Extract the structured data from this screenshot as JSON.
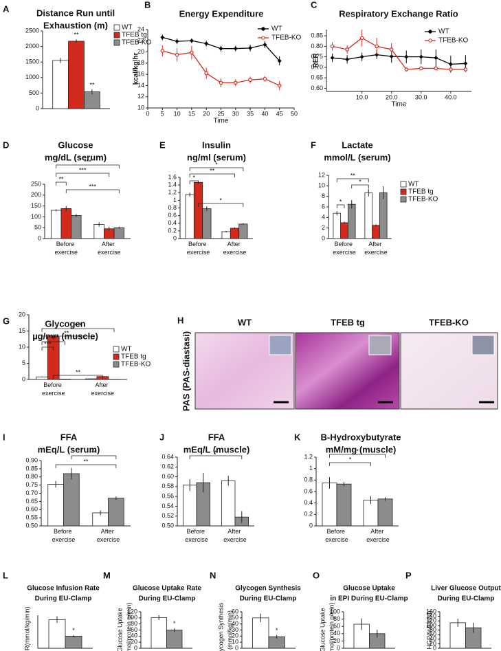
{
  "chart_data": [
    {
      "panel": "A",
      "type": "bar",
      "title": [
        "Distance Run until",
        "Exhaustion (m)"
      ],
      "series": [
        {
          "name": "WT",
          "color": "#ffffff",
          "values": [
            1550
          ],
          "errors": [
            80
          ]
        },
        {
          "name": "TFEB tg",
          "color": "#d42a1e",
          "values": [
            2170
          ],
          "errors": [
            60
          ]
        },
        {
          "name": "TFEB-KO",
          "color": "#8c8c8c",
          "values": [
            540
          ],
          "errors": [
            80
          ]
        }
      ],
      "ylim": [
        0,
        2500
      ],
      "yticks": [
        0,
        500,
        1000,
        1500,
        2000,
        2500
      ],
      "annotations": [
        "**",
        "**"
      ],
      "legend": "right"
    },
    {
      "panel": "B",
      "type": "line",
      "title": [
        "Energy Expenditure"
      ],
      "x": [
        5,
        10,
        15,
        20,
        25,
        30,
        35,
        40,
        45
      ],
      "series": [
        {
          "name": "WT",
          "color": "#000000",
          "values": [
            22.6,
            21.9,
            22.0,
            21.5,
            20.6,
            20.6,
            20.7,
            21.3,
            18.4
          ],
          "errors": [
            0.5,
            0.5,
            0.4,
            0.5,
            0.5,
            0.5,
            0.6,
            0.6,
            0.8
          ]
        },
        {
          "name": "TFEB-KO",
          "color": "#d42a1e",
          "values": [
            20.2,
            19.5,
            19.9,
            16.2,
            14.5,
            14.5,
            15.0,
            15.2,
            14.0
          ],
          "errors": [
            1.0,
            1.2,
            1.2,
            1.0,
            0.8,
            0.6,
            0.6,
            0.5,
            0.8
          ]
        }
      ],
      "xlim": [
        0,
        50
      ],
      "xticks": [
        0,
        5,
        10,
        15,
        20,
        25,
        30,
        35,
        40,
        45,
        50
      ],
      "ylim": [
        10,
        24
      ],
      "yticks": [
        10,
        12,
        14,
        16,
        18,
        20,
        22,
        24
      ],
      "xlabel": "Time",
      "ylabel": [
        "kcal/kg/hr"
      ],
      "legend": "upper right"
    },
    {
      "panel": "C",
      "type": "line",
      "title": [
        "Respiratory Exchange Ratio"
      ],
      "x": [
        0,
        5,
        10,
        15,
        20,
        25,
        30,
        35,
        40,
        45
      ],
      "series": [
        {
          "name": "WT",
          "color": "#000000",
          "values": [
            0.745,
            0.738,
            0.75,
            0.76,
            0.752,
            0.75,
            0.75,
            0.745,
            0.715,
            0.718
          ],
          "errors": [
            0.02,
            0.02,
            0.02,
            0.02,
            0.03,
            0.03,
            0.035,
            0.04,
            0.04,
            0.04
          ]
        },
        {
          "name": "TFEB-KO",
          "color": "#d42a1e",
          "values": [
            0.8,
            0.785,
            0.84,
            0.8,
            0.785,
            0.69,
            0.695,
            0.695,
            0.69,
            0.69
          ],
          "errors": [
            0.02,
            0.02,
            0.04,
            0.04,
            0.03,
            0.01,
            0.01,
            0.01,
            0.01,
            0.01
          ]
        }
      ],
      "xlim": [
        -2,
        47
      ],
      "xticks": [
        {
          "value": 10,
          "label": "10.0"
        },
        {
          "value": 20,
          "label": "20.0"
        },
        {
          "value": 30,
          "label": "30.0"
        },
        {
          "value": 40,
          "label": "40.0"
        }
      ],
      "ylim": [
        0.585,
        0.88
      ],
      "yticks": [
        {
          "value": 0.6,
          "label": "0.60"
        },
        {
          "value": 0.65,
          "label": "0.65"
        },
        {
          "value": 0.7,
          "label": "0.70"
        },
        {
          "value": 0.75,
          "label": "0.75"
        },
        {
          "value": 0.8,
          "label": "0.80"
        },
        {
          "value": 0.85,
          "label": "0.85"
        }
      ],
      "xlabel": "Time",
      "ylabel": [
        "RER"
      ],
      "legend": "upper right"
    },
    {
      "panel": "D",
      "type": "bar",
      "title": [
        "Glucose",
        "mg/dL (serum)"
      ],
      "categories": [
        "Before exercise",
        "After exercise"
      ],
      "series": [
        {
          "color": "#ffffff",
          "values": [
            130,
            65
          ],
          "errors": [
            5,
            10
          ]
        },
        {
          "color": "#d42a1e",
          "values": [
            138,
            45
          ],
          "errors": [
            12,
            10
          ]
        },
        {
          "color": "#8c8c8c",
          "values": [
            106,
            50
          ],
          "errors": [
            7,
            5
          ]
        }
      ],
      "ylim": [
        0,
        250
      ],
      "yticks": [
        0,
        50,
        100,
        150,
        200,
        250
      ],
      "annotations": [
        "***",
        "***",
        "**",
        "***"
      ]
    },
    {
      "panel": "E",
      "type": "bar",
      "title": [
        "Insulin",
        "ng/ml (serum)"
      ],
      "categories": [
        "Before exercise",
        "After exercise"
      ],
      "series": [
        {
          "color": "#ffffff",
          "values": [
            1.15,
            0.18
          ],
          "errors": [
            0.05,
            0.02
          ]
        },
        {
          "color": "#d42a1e",
          "values": [
            1.47,
            0.27
          ],
          "errors": [
            0.02,
            0.02
          ]
        },
        {
          "color": "#8c8c8c",
          "values": [
            0.78,
            0.38
          ],
          "errors": [
            0.06,
            0.02
          ]
        }
      ],
      "ylim": [
        0,
        1.6
      ],
      "yticks": [
        0,
        0.2,
        0.4,
        0.6,
        0.8,
        1,
        1.2,
        1.4,
        1.6
      ],
      "annotations": [
        "*",
        "**",
        "*",
        "*"
      ]
    },
    {
      "panel": "F",
      "type": "bar",
      "title": [
        "Lactate",
        "mmol/L (serum)"
      ],
      "categories": [
        "Before exercise",
        "After exercise"
      ],
      "series": [
        {
          "name": "WT",
          "color": "#ffffff",
          "values": [
            4.8,
            8.7
          ],
          "errors": [
            0.4,
            0.7
          ]
        },
        {
          "name": "TFEB tg",
          "color": "#d42a1e",
          "values": [
            3.0,
            2.5
          ],
          "errors": [
            0.2,
            0.2
          ]
        },
        {
          "name": "TFEB-KO",
          "color": "#8c8c8c",
          "values": [
            6.5,
            8.7
          ],
          "errors": [
            0.8,
            1.2
          ]
        }
      ],
      "ylim": [
        0,
        12
      ],
      "yticks": [
        0,
        2,
        4,
        6,
        8,
        10,
        12
      ],
      "annotations": [
        "**",
        "*",
        "*"
      ],
      "legend": "right"
    },
    {
      "panel": "G",
      "type": "bar",
      "title": [
        "Glycogen",
        "µg/mg (muscle)"
      ],
      "categories": [
        "Before exercise",
        "After exercise"
      ],
      "series": [
        {
          "name": "WT",
          "color": "#ffffff",
          "values": [
            0.8,
            0.2
          ],
          "errors": [
            0.1,
            0.05
          ]
        },
        {
          "name": "TFEB tg",
          "color": "#d42a1e",
          "values": [
            13.2,
            0.9
          ],
          "errors": [
            0.8,
            0.1
          ]
        },
        {
          "name": "TFEB-KO",
          "color": "#8c8c8c",
          "values": [
            0.1,
            0.05
          ],
          "errors": [
            0.05,
            0.02
          ]
        }
      ],
      "ylim": [
        0,
        20
      ],
      "yticks": [
        0,
        5,
        10,
        15,
        20
      ],
      "annotations": [
        "***",
        "**",
        "**",
        "***",
        "**"
      ],
      "legend": "right"
    },
    {
      "panel": "I",
      "type": "bar",
      "title": [
        "FFA",
        "mEq/L (serum)"
      ],
      "categories": [
        "Before exercise",
        "After exercise"
      ],
      "series": [
        {
          "color": "#ffffff",
          "values": [
            0.755,
            0.58
          ],
          "errors": [
            0.02,
            0.015
          ]
        },
        {
          "color": "#8c8c8c",
          "values": [
            0.82,
            0.67
          ],
          "errors": [
            0.035,
            0.01
          ]
        }
      ],
      "ylim": [
        0.5,
        0.9
      ],
      "yticks": [
        {
          "value": 0.5,
          "label": "0.50"
        },
        {
          "value": 0.55,
          "label": "0.55"
        },
        {
          "value": 0.6,
          "label": "0.60"
        },
        {
          "value": 0.65,
          "label": "0.65"
        },
        {
          "value": 0.7,
          "label": "0.70"
        },
        {
          "value": 0.75,
          "label": "0.75"
        },
        {
          "value": 0.8,
          "label": "0.80"
        },
        {
          "value": 0.85,
          "label": "0.85"
        },
        {
          "value": 0.9,
          "label": "0.90"
        }
      ],
      "annotations": [
        "**",
        "**"
      ]
    },
    {
      "panel": "J",
      "type": "bar",
      "title": [
        "FFA",
        "mEq/L (muscle)"
      ],
      "categories": [
        "Before exercise",
        "After exercise"
      ],
      "series": [
        {
          "color": "#ffffff",
          "values": [
            0.583,
            0.592
          ],
          "errors": [
            0.012,
            0.01
          ]
        },
        {
          "color": "#8c8c8c",
          "values": [
            0.588,
            0.518
          ],
          "errors": [
            0.02,
            0.012
          ]
        }
      ],
      "ylim": [
        0.5,
        0.64
      ],
      "yticks": [
        {
          "value": 0.5,
          "label": "0.50"
        },
        {
          "value": 0.52,
          "label": "0.52"
        },
        {
          "value": 0.54,
          "label": "0.54"
        },
        {
          "value": 0.56,
          "label": "0.56"
        },
        {
          "value": 0.58,
          "label": "0.58"
        },
        {
          "value": 0.6,
          "label": "0.60"
        },
        {
          "value": 0.62,
          "label": "0.62"
        },
        {
          "value": 0.64,
          "label": "0.64"
        }
      ],
      "annotations": [
        "*"
      ]
    },
    {
      "panel": "K",
      "type": "bar",
      "title": [
        "B-Hydroxybutyrate",
        "mM/mg (muscle)"
      ],
      "categories": [
        "Before exercise",
        "After exercise"
      ],
      "series": [
        {
          "color": "#ffffff",
          "values": [
            0.75,
            0.45
          ],
          "errors": [
            0.1,
            0.07
          ]
        },
        {
          "color": "#8c8c8c",
          "values": [
            0.73,
            0.47
          ],
          "errors": [
            0.04,
            0.03
          ]
        }
      ],
      "ylim": [
        0,
        1.2
      ],
      "yticks": [
        0,
        0.2,
        0.4,
        0.6,
        0.8,
        1,
        1.2
      ],
      "annotations": [
        "*",
        "*"
      ]
    },
    {
      "panel": "L",
      "type": "bar",
      "title": [
        "Glucose Infusion Rate",
        "During EU-Clamp"
      ],
      "ylabel": [
        "GIR(mmol/kg/min)"
      ],
      "values": [
        0.26,
        0.11
      ],
      "errors": [
        0.03,
        0.01
      ],
      "colors": [
        "#ffffff",
        "#8c8c8c"
      ],
      "ylim": [
        0,
        0.3
      ],
      "annotations": [
        "*"
      ]
    },
    {
      "panel": "M",
      "type": "bar",
      "title": [
        "Glucose Uptake Rate",
        "During EU-Clamp"
      ],
      "ylabel": [
        "Glucose Uptake",
        "(nmol/protein g/min)"
      ],
      "values": [
        101,
        60
      ],
      "errors": [
        8,
        6
      ],
      "colors": [
        "#ffffff",
        "#8c8c8c"
      ],
      "ylim": [
        0,
        120
      ],
      "yticks": [
        0,
        20,
        40,
        60,
        80,
        100,
        120
      ],
      "annotations": [
        "*"
      ]
    },
    {
      "panel": "N",
      "type": "bar",
      "title": [
        "Glycogen Synthesis",
        "During EU-Clamp"
      ],
      "ylabel": [
        "Glycogen Synthesis",
        "(mmol/kg/min)"
      ],
      "values": [
        50,
        19
      ],
      "errors": [
        7,
        3
      ],
      "colors": [
        "#ffffff",
        "#8c8c8c"
      ],
      "ylim": [
        0,
        60
      ],
      "yticks": [
        0,
        10,
        20,
        30,
        40,
        50,
        60
      ],
      "annotations": [
        "*"
      ]
    },
    {
      "panel": "O",
      "type": "bar",
      "title": [
        "Glucose Uptake",
        "in EPI During EU-Clamp"
      ],
      "ylabel": [
        "Glucose Uptake",
        "(nmol/protein g/min)"
      ],
      "values": [
        66,
        40
      ],
      "errors": [
        16,
        11
      ],
      "colors": [
        "#ffffff",
        "#8c8c8c"
      ],
      "ylim": [
        0,
        100
      ],
      "yticks": [
        0,
        20,
        40,
        60,
        80,
        100
      ]
    },
    {
      "panel": "P",
      "type": "bar",
      "title": [
        "Liver Glucose Output",
        "During EU-Clamp"
      ],
      "ylabel": [
        "HGP(%Basal)"
      ],
      "values": [
        112,
        90
      ],
      "errors": [
        18,
        22
      ],
      "colors": [
        "#ffffff",
        "#8c8c8c"
      ],
      "ylim": [
        0,
        160
      ],
      "yticks": [
        0,
        20,
        40,
        60,
        80,
        100,
        120,
        140,
        160
      ]
    }
  ],
  "panel_h": {
    "panel": "H",
    "ylabel": "PAS (PAS-diastasi)",
    "labels": [
      "WT",
      "TFEB tg",
      "TFEB-KO"
    ]
  }
}
